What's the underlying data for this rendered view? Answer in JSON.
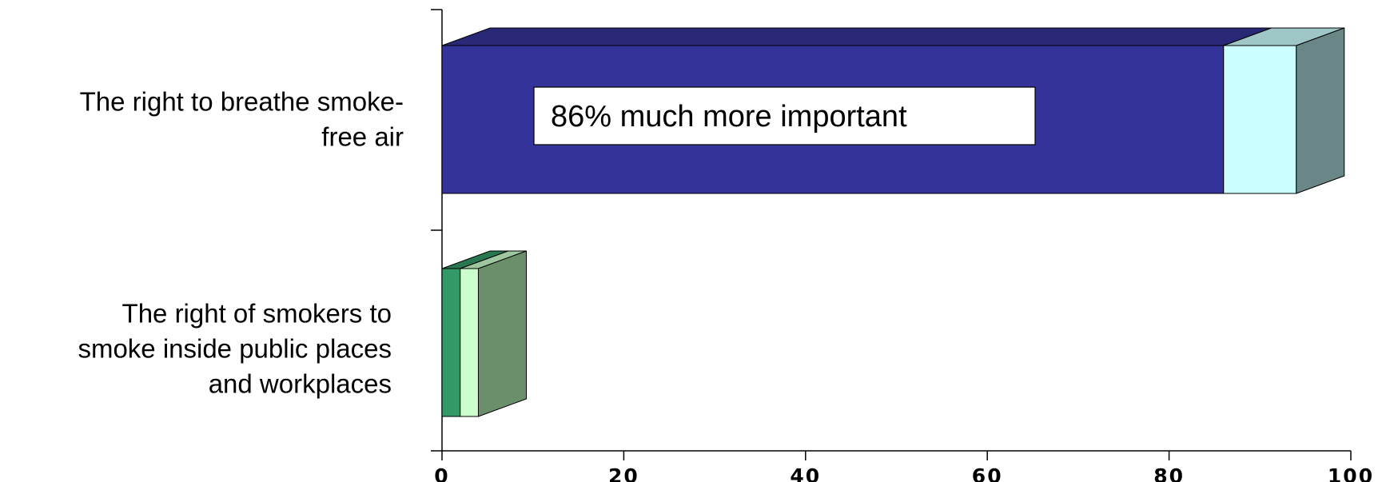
{
  "chart_data": {
    "type": "bar",
    "orientation": "horizontal",
    "stacked": true,
    "three_d": true,
    "categories": [
      [
        "The right to breathe smoke-",
        "free air"
      ],
      [
        "The right of smokers to",
        "smoke inside public places",
        "and workplaces"
      ]
    ],
    "series": [
      {
        "values": [
          86,
          2
        ],
        "colors": [
          "#333399",
          "#339966"
        ]
      },
      {
        "values": [
          8,
          2
        ],
        "colors": [
          "#ccffff",
          "#ccffcc"
        ]
      }
    ],
    "xlim": [
      0,
      100
    ],
    "xticks": [
      0,
      20,
      40,
      60,
      80,
      100
    ],
    "annotation": {
      "text": "86% much more important",
      "category_index": 0
    },
    "grid": false,
    "legend": "none"
  }
}
